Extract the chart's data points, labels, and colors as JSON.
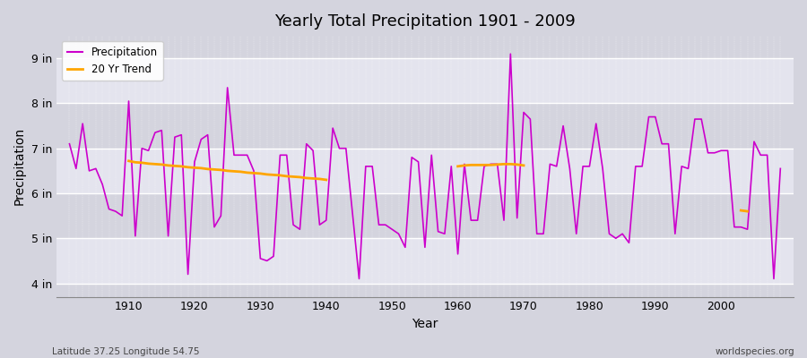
{
  "title": "Yearly Total Precipitation 1901 - 2009",
  "xlabel": "Year",
  "ylabel": "Precipitation",
  "bg_color": "#d8d8e0",
  "plot_bg_color_light": "#e8e8f0",
  "plot_bg_color_dark": "#d8d8e0",
  "precip_color": "#cc00cc",
  "trend_color": "#ffa500",
  "years": [
    1901,
    1902,
    1903,
    1904,
    1905,
    1906,
    1907,
    1908,
    1909,
    1910,
    1911,
    1912,
    1913,
    1914,
    1915,
    1916,
    1917,
    1918,
    1919,
    1920,
    1921,
    1922,
    1923,
    1924,
    1925,
    1926,
    1927,
    1928,
    1929,
    1930,
    1931,
    1932,
    1933,
    1934,
    1935,
    1936,
    1937,
    1938,
    1939,
    1940,
    1941,
    1942,
    1943,
    1944,
    1945,
    1946,
    1947,
    1948,
    1949,
    1950,
    1951,
    1952,
    1953,
    1954,
    1955,
    1956,
    1957,
    1958,
    1959,
    1960,
    1961,
    1962,
    1963,
    1964,
    1965,
    1966,
    1967,
    1968,
    1969,
    1970,
    1971,
    1972,
    1973,
    1974,
    1975,
    1976,
    1977,
    1978,
    1979,
    1980,
    1981,
    1982,
    1983,
    1984,
    1985,
    1986,
    1987,
    1988,
    1989,
    1990,
    1991,
    1992,
    1993,
    1994,
    1995,
    1996,
    1997,
    1998,
    1999,
    2000,
    2001,
    2002,
    2003,
    2004,
    2005,
    2006,
    2007,
    2008,
    2009
  ],
  "precip": [
    7.1,
    6.55,
    7.55,
    6.5,
    6.55,
    6.2,
    5.65,
    5.6,
    5.5,
    8.05,
    5.05,
    7.0,
    6.95,
    7.35,
    7.4,
    5.05,
    7.25,
    7.3,
    4.2,
    6.7,
    7.2,
    7.3,
    5.25,
    5.5,
    8.35,
    6.85,
    6.85,
    6.85,
    6.5,
    4.55,
    4.5,
    4.6,
    6.85,
    6.85,
    5.3,
    5.2,
    7.1,
    6.95,
    5.3,
    5.4,
    7.45,
    7.0,
    7.0,
    5.55,
    4.1,
    6.6,
    6.6,
    5.3,
    5.3,
    5.2,
    5.1,
    4.8,
    6.8,
    6.7,
    4.8,
    6.85,
    5.15,
    5.1,
    6.6,
    4.65,
    6.65,
    5.4,
    5.4,
    6.6,
    6.65,
    6.65,
    5.4,
    9.1,
    5.45,
    7.8,
    7.65,
    5.1,
    5.1,
    6.65,
    6.6,
    7.5,
    6.55,
    5.1,
    6.6,
    6.6,
    7.55,
    6.55,
    5.1,
    5.0,
    5.1,
    4.9,
    6.6,
    6.6,
    7.7,
    7.7,
    7.1,
    7.1,
    5.1,
    6.6,
    6.55,
    7.65,
    7.65,
    6.9,
    6.9,
    6.95,
    6.95,
    5.25,
    5.25,
    5.2,
    7.15,
    6.85,
    6.85,
    4.1,
    6.55
  ],
  "ytick_labels": [
    "4 in",
    "5 in",
    "6 in",
    "7 in",
    "8 in",
    "9 in"
  ],
  "ytick_vals": [
    4,
    5,
    6,
    7,
    8,
    9
  ],
  "ylim": [
    3.7,
    9.5
  ],
  "xlim": [
    1899,
    2011
  ],
  "xtick_vals": [
    1910,
    1920,
    1930,
    1940,
    1950,
    1960,
    1970,
    1980,
    1990,
    2000
  ],
  "footnote_left": "Latitude 37.25 Longitude 54.75",
  "footnote_right": "worldspecies.org",
  "legend_items": [
    {
      "label": "Precipitation",
      "color": "#cc00cc"
    },
    {
      "label": "20 Yr Trend",
      "color": "#ffa500"
    }
  ],
  "trend_segments": [
    {
      "years": [
        1910,
        1911,
        1912,
        1913,
        1914,
        1915,
        1916,
        1917,
        1918,
        1919,
        1920,
        1921,
        1922,
        1923,
        1924,
        1925,
        1926,
        1927,
        1928,
        1929,
        1930,
        1931,
        1932,
        1933,
        1934,
        1935,
        1936,
        1937,
        1938,
        1939,
        1940
      ],
      "vals": [
        6.72,
        6.69,
        6.68,
        6.66,
        6.65,
        6.64,
        6.62,
        6.61,
        6.6,
        6.58,
        6.57,
        6.56,
        6.54,
        6.53,
        6.52,
        6.5,
        6.49,
        6.48,
        6.46,
        6.45,
        6.44,
        6.42,
        6.41,
        6.4,
        6.38,
        6.37,
        6.36,
        6.34,
        6.33,
        6.32,
        6.3
      ]
    },
    {
      "years": [
        1960,
        1961,
        1962,
        1963,
        1964,
        1965,
        1966,
        1967,
        1968,
        1969,
        1970
      ],
      "vals": [
        6.6,
        6.62,
        6.63,
        6.63,
        6.63,
        6.63,
        6.64,
        6.65,
        6.65,
        6.64,
        6.62
      ]
    },
    {
      "years": [
        2003,
        2004
      ],
      "vals": [
        5.62,
        5.6
      ]
    }
  ]
}
